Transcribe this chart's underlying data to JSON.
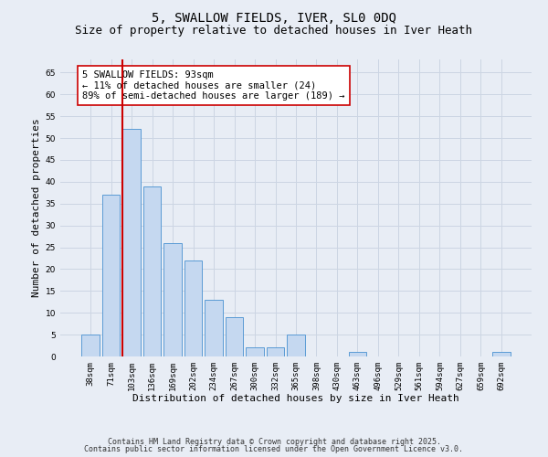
{
  "title_line1": "5, SWALLOW FIELDS, IVER, SL0 0DQ",
  "title_line2": "Size of property relative to detached houses in Iver Heath",
  "xlabel": "Distribution of detached houses by size in Iver Heath",
  "ylabel": "Number of detached properties",
  "categories": [
    "38sqm",
    "71sqm",
    "103sqm",
    "136sqm",
    "169sqm",
    "202sqm",
    "234sqm",
    "267sqm",
    "300sqm",
    "332sqm",
    "365sqm",
    "398sqm",
    "430sqm",
    "463sqm",
    "496sqm",
    "529sqm",
    "561sqm",
    "594sqm",
    "627sqm",
    "659sqm",
    "692sqm"
  ],
  "values": [
    5,
    37,
    52,
    39,
    26,
    22,
    13,
    9,
    2,
    2,
    5,
    0,
    0,
    1,
    0,
    0,
    0,
    0,
    0,
    0,
    1
  ],
  "bar_color": "#c5d8f0",
  "bar_edge_color": "#5b9bd5",
  "vline_color": "#cc0000",
  "annotation_text": "5 SWALLOW FIELDS: 93sqm\n← 11% of detached houses are smaller (24)\n89% of semi-detached houses are larger (189) →",
  "annotation_box_color": "#ffffff",
  "annotation_box_edge": "#cc0000",
  "ylim": [
    0,
    68
  ],
  "yticks": [
    0,
    5,
    10,
    15,
    20,
    25,
    30,
    35,
    40,
    45,
    50,
    55,
    60,
    65
  ],
  "grid_color": "#ccd5e3",
  "background_color": "#e8edf5",
  "footer_line1": "Contains HM Land Registry data © Crown copyright and database right 2025.",
  "footer_line2": "Contains public sector information licensed under the Open Government Licence v3.0.",
  "title_fontsize": 10,
  "subtitle_fontsize": 9,
  "axis_label_fontsize": 8,
  "tick_fontsize": 6.5,
  "annotation_fontsize": 7.5,
  "footer_fontsize": 6
}
